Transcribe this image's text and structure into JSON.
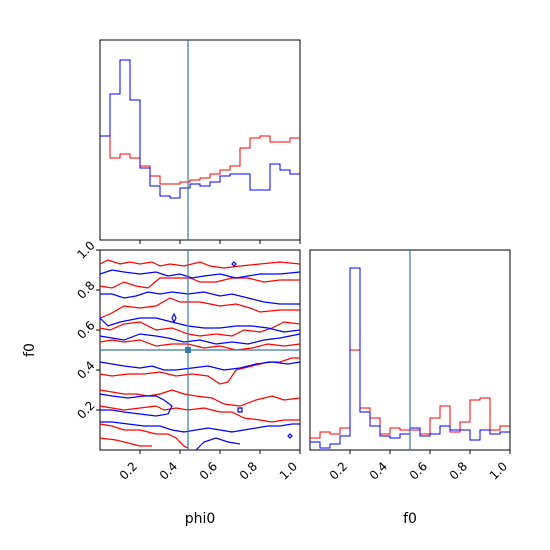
{
  "chart_data": {
    "type": "corner",
    "parameters": [
      "phi0",
      "f0"
    ],
    "truths": {
      "phi0": 0.44,
      "f0": 0.5
    },
    "truth_color": "#3a78a8",
    "series_colors": [
      "#ff0000",
      "#0000ff"
    ],
    "x_ticks": [
      "0.2",
      "0.4",
      "0.6",
      "0.8",
      "1.0"
    ],
    "y_ticks": [
      "0.2",
      "0.4",
      "0.6",
      "0.8",
      "1.0"
    ],
    "x_ticks_values": [
      0.2,
      0.4,
      0.6,
      0.8,
      1.0
    ],
    "y_ticks_values": [
      0.2,
      0.4,
      0.6,
      0.8,
      1.0
    ],
    "xlabels": {
      "phi0": "phi0",
      "f0": "f0"
    },
    "ylabel": "f0",
    "xlim": [
      0,
      1
    ],
    "ylim": [
      0,
      1
    ],
    "phi0_hist": {
      "bin_edges": [
        0,
        0.05,
        0.1,
        0.15,
        0.2,
        0.25,
        0.3,
        0.35,
        0.4,
        0.45,
        0.5,
        0.55,
        0.6,
        0.65,
        0.7,
        0.75,
        0.8,
        0.85,
        0.9,
        0.95,
        1.0
      ],
      "red": [
        0.52,
        0.41,
        0.43,
        0.41,
        0.37,
        0.32,
        0.28,
        0.28,
        0.29,
        0.3,
        0.31,
        0.33,
        0.35,
        0.37,
        0.46,
        0.51,
        0.52,
        0.49,
        0.49,
        0.51
      ],
      "blue": [
        0.52,
        0.73,
        0.9,
        0.7,
        0.36,
        0.27,
        0.22,
        0.21,
        0.26,
        0.28,
        0.27,
        0.29,
        0.32,
        0.33,
        0.33,
        0.25,
        0.25,
        0.38,
        0.35,
        0.33
      ]
    },
    "f0_hist": {
      "bin_edges": [
        0,
        0.05,
        0.1,
        0.15,
        0.2,
        0.25,
        0.3,
        0.35,
        0.4,
        0.45,
        0.5,
        0.55,
        0.6,
        0.65,
        0.7,
        0.75,
        0.8,
        0.85,
        0.9,
        0.95,
        1.0
      ],
      "red": [
        0.06,
        0.09,
        0.08,
        0.11,
        0.5,
        0.21,
        0.16,
        0.08,
        0.11,
        0.1,
        0.1,
        0.08,
        0.16,
        0.22,
        0.09,
        0.14,
        0.25,
        0.26,
        0.1,
        0.12
      ],
      "blue": [
        0.04,
        0.01,
        0.03,
        0.07,
        0.91,
        0.19,
        0.12,
        0.07,
        0.06,
        0.08,
        0.11,
        0.07,
        0.08,
        0.12,
        0.1,
        0.1,
        0.05,
        0.1,
        0.08,
        0.09
      ]
    },
    "contours_2d": {
      "red": [
        [
          [
            0.0,
            0.93
          ],
          [
            0.04,
            0.95
          ],
          [
            0.1,
            0.93
          ],
          [
            0.15,
            0.94
          ],
          [
            0.2,
            0.93
          ],
          [
            0.26,
            0.94
          ],
          [
            0.3,
            0.92
          ],
          [
            0.35,
            0.93
          ],
          [
            0.42,
            0.92
          ],
          [
            0.5,
            0.94
          ],
          [
            0.55,
            0.92
          ],
          [
            0.62,
            0.91
          ],
          [
            0.7,
            0.92
          ],
          [
            0.8,
            0.93
          ],
          [
            0.9,
            0.94
          ],
          [
            1.0,
            0.93
          ]
        ],
        [
          [
            0.0,
            0.82
          ],
          [
            0.06,
            0.81
          ],
          [
            0.12,
            0.84
          ],
          [
            0.18,
            0.82
          ],
          [
            0.24,
            0.81
          ],
          [
            0.3,
            0.86
          ],
          [
            0.38,
            0.86
          ],
          [
            0.45,
            0.86
          ],
          [
            0.5,
            0.84
          ],
          [
            0.58,
            0.84
          ],
          [
            0.66,
            0.86
          ],
          [
            0.74,
            0.86
          ],
          [
            0.82,
            0.84
          ],
          [
            0.9,
            0.85
          ],
          [
            1.0,
            0.85
          ]
        ],
        [
          [
            0.0,
            0.66
          ],
          [
            0.05,
            0.68
          ],
          [
            0.12,
            0.72
          ],
          [
            0.2,
            0.71
          ],
          [
            0.28,
            0.72
          ],
          [
            0.35,
            0.76
          ],
          [
            0.4,
            0.74
          ],
          [
            0.5,
            0.74
          ],
          [
            0.6,
            0.72
          ],
          [
            0.68,
            0.73
          ],
          [
            0.75,
            0.71
          ],
          [
            0.8,
            0.69
          ],
          [
            0.9,
            0.7
          ],
          [
            1.0,
            0.7
          ]
        ],
        [
          [
            0.0,
            0.61
          ],
          [
            0.05,
            0.6
          ],
          [
            0.12,
            0.63
          ],
          [
            0.2,
            0.64
          ],
          [
            0.28,
            0.6
          ],
          [
            0.36,
            0.61
          ],
          [
            0.44,
            0.58
          ],
          [
            0.5,
            0.57
          ],
          [
            0.58,
            0.58
          ],
          [
            0.66,
            0.57
          ],
          [
            0.72,
            0.6
          ],
          [
            0.8,
            0.59
          ],
          [
            0.86,
            0.61
          ],
          [
            0.92,
            0.64
          ],
          [
            1.0,
            0.63
          ]
        ],
        [
          [
            0.0,
            0.54
          ],
          [
            0.06,
            0.55
          ],
          [
            0.12,
            0.54
          ],
          [
            0.2,
            0.55
          ],
          [
            0.28,
            0.52
          ],
          [
            0.36,
            0.53
          ],
          [
            0.44,
            0.53
          ],
          [
            0.52,
            0.51
          ],
          [
            0.6,
            0.52
          ],
          [
            0.68,
            0.5
          ],
          [
            0.76,
            0.51
          ],
          [
            0.84,
            0.53
          ],
          [
            0.92,
            0.52
          ],
          [
            1.0,
            0.53
          ]
        ],
        [
          [
            0.0,
            0.38
          ],
          [
            0.06,
            0.37
          ],
          [
            0.14,
            0.38
          ],
          [
            0.22,
            0.38
          ],
          [
            0.3,
            0.39
          ],
          [
            0.38,
            0.37
          ],
          [
            0.46,
            0.38
          ],
          [
            0.54,
            0.37
          ],
          [
            0.6,
            0.33
          ],
          [
            0.64,
            0.34
          ],
          [
            0.68,
            0.4
          ],
          [
            0.76,
            0.42
          ],
          [
            0.84,
            0.44
          ],
          [
            0.9,
            0.44
          ],
          [
            0.96,
            0.46
          ],
          [
            1.0,
            0.46
          ]
        ],
        [
          [
            0.0,
            0.3
          ],
          [
            0.06,
            0.29
          ],
          [
            0.12,
            0.28
          ],
          [
            0.18,
            0.28
          ],
          [
            0.24,
            0.27
          ],
          [
            0.3,
            0.28
          ],
          [
            0.36,
            0.3
          ],
          [
            0.42,
            0.28
          ],
          [
            0.48,
            0.27
          ],
          [
            0.56,
            0.26
          ],
          [
            0.62,
            0.23
          ],
          [
            0.7,
            0.22
          ],
          [
            0.78,
            0.25
          ],
          [
            0.86,
            0.27
          ],
          [
            0.92,
            0.25
          ],
          [
            1.0,
            0.26
          ]
        ],
        [
          [
            0.0,
            0.22
          ],
          [
            0.06,
            0.21
          ],
          [
            0.12,
            0.2
          ],
          [
            0.2,
            0.21
          ],
          [
            0.28,
            0.22
          ],
          [
            0.32,
            0.2
          ],
          [
            0.38,
            0.21
          ],
          [
            0.44,
            0.2
          ],
          [
            0.52,
            0.21
          ],
          [
            0.6,
            0.19
          ],
          [
            0.66,
            0.19
          ],
          [
            0.72,
            0.16
          ],
          [
            0.8,
            0.15
          ],
          [
            0.86,
            0.14
          ],
          [
            0.92,
            0.15
          ],
          [
            1.0,
            0.15
          ]
        ],
        [
          [
            0.0,
            0.13
          ],
          [
            0.06,
            0.12
          ],
          [
            0.12,
            0.1
          ],
          [
            0.2,
            0.1
          ],
          [
            0.28,
            0.08
          ],
          [
            0.34,
            0.08
          ],
          [
            0.38,
            0.06
          ],
          [
            0.4,
            0.04
          ],
          [
            0.42,
            0.02
          ],
          [
            0.44,
            0.01
          ]
        ],
        [
          [
            0.0,
            0.06
          ],
          [
            0.08,
            0.05
          ],
          [
            0.16,
            0.03
          ],
          [
            0.2,
            0.02
          ],
          [
            0.26,
            0.02
          ]
        ]
      ],
      "blue": [
        [
          [
            0.0,
            0.88
          ],
          [
            0.06,
            0.9
          ],
          [
            0.12,
            0.89
          ],
          [
            0.2,
            0.88
          ],
          [
            0.28,
            0.89
          ],
          [
            0.34,
            0.87
          ],
          [
            0.4,
            0.88
          ],
          [
            0.46,
            0.86
          ],
          [
            0.52,
            0.87
          ],
          [
            0.6,
            0.88
          ],
          [
            0.68,
            0.86
          ],
          [
            0.74,
            0.87
          ],
          [
            0.8,
            0.88
          ],
          [
            0.9,
            0.88
          ],
          [
            1.0,
            0.89
          ]
        ],
        [
          [
            0.0,
            0.78
          ],
          [
            0.06,
            0.78
          ],
          [
            0.12,
            0.76
          ],
          [
            0.18,
            0.77
          ],
          [
            0.24,
            0.79
          ],
          [
            0.3,
            0.78
          ],
          [
            0.36,
            0.79
          ],
          [
            0.44,
            0.78
          ],
          [
            0.52,
            0.79
          ],
          [
            0.6,
            0.77
          ],
          [
            0.66,
            0.78
          ],
          [
            0.74,
            0.76
          ],
          [
            0.82,
            0.74
          ],
          [
            0.9,
            0.73
          ],
          [
            1.0,
            0.73
          ]
        ],
        [
          [
            0.0,
            0.66
          ],
          [
            0.04,
            0.62
          ],
          [
            0.1,
            0.64
          ],
          [
            0.2,
            0.66
          ],
          [
            0.28,
            0.66
          ],
          [
            0.36,
            0.64
          ],
          [
            0.44,
            0.62
          ],
          [
            0.52,
            0.61
          ],
          [
            0.6,
            0.61
          ],
          [
            0.68,
            0.62
          ],
          [
            0.76,
            0.62
          ],
          [
            0.84,
            0.61
          ],
          [
            0.92,
            0.59
          ],
          [
            1.0,
            0.6
          ]
        ],
        [
          [
            0.0,
            0.57
          ],
          [
            0.06,
            0.56
          ],
          [
            0.12,
            0.55
          ],
          [
            0.2,
            0.58
          ],
          [
            0.28,
            0.57
          ],
          [
            0.34,
            0.56
          ],
          [
            0.42,
            0.54
          ],
          [
            0.5,
            0.55
          ],
          [
            0.58,
            0.53
          ],
          [
            0.66,
            0.54
          ],
          [
            0.74,
            0.53
          ],
          [
            0.82,
            0.55
          ],
          [
            0.9,
            0.56
          ],
          [
            1.0,
            0.58
          ]
        ],
        [
          [
            0.0,
            0.44
          ],
          [
            0.06,
            0.43
          ],
          [
            0.12,
            0.42
          ],
          [
            0.2,
            0.41
          ],
          [
            0.26,
            0.42
          ],
          [
            0.32,
            0.4
          ],
          [
            0.38,
            0.4
          ],
          [
            0.46,
            0.41
          ],
          [
            0.54,
            0.42
          ],
          [
            0.62,
            0.4
          ],
          [
            0.7,
            0.41
          ],
          [
            0.78,
            0.43
          ],
          [
            0.86,
            0.44
          ],
          [
            0.94,
            0.43
          ],
          [
            1.0,
            0.44
          ]
        ],
        [
          [
            0.0,
            0.28
          ],
          [
            0.06,
            0.27
          ],
          [
            0.14,
            0.26
          ],
          [
            0.22,
            0.27
          ],
          [
            0.28,
            0.27
          ],
          [
            0.32,
            0.25
          ],
          [
            0.36,
            0.22
          ],
          [
            0.34,
            0.18
          ],
          [
            0.28,
            0.17
          ],
          [
            0.2,
            0.18
          ],
          [
            0.12,
            0.19
          ],
          [
            0.06,
            0.2
          ],
          [
            0.0,
            0.2
          ]
        ],
        [
          [
            0.0,
            0.14
          ],
          [
            0.06,
            0.14
          ],
          [
            0.14,
            0.13
          ],
          [
            0.22,
            0.12
          ],
          [
            0.3,
            0.12
          ],
          [
            0.36,
            0.1
          ],
          [
            0.42,
            0.09
          ],
          [
            0.48,
            0.1
          ],
          [
            0.54,
            0.11
          ],
          [
            0.6,
            0.1
          ],
          [
            0.66,
            0.09
          ],
          [
            0.72,
            0.1
          ],
          [
            0.78,
            0.11
          ],
          [
            0.84,
            0.12
          ],
          [
            0.9,
            0.12
          ],
          [
            0.96,
            0.13
          ],
          [
            1.0,
            0.13
          ]
        ],
        [
          [
            0.48,
            0.0
          ],
          [
            0.52,
            0.04
          ],
          [
            0.58,
            0.06
          ],
          [
            0.64,
            0.04
          ],
          [
            0.7,
            0.03
          ]
        ]
      ],
      "blue_islands": [
        [
          [
            0.37,
            0.68
          ],
          [
            0.38,
            0.66
          ],
          [
            0.37,
            0.64
          ],
          [
            0.36,
            0.66
          ]
        ],
        [
          [
            0.66,
            0.93
          ],
          [
            0.67,
            0.94
          ],
          [
            0.68,
            0.93
          ],
          [
            0.67,
            0.92
          ]
        ],
        [
          [
            0.69,
            0.21
          ],
          [
            0.71,
            0.21
          ],
          [
            0.71,
            0.19
          ],
          [
            0.69,
            0.19
          ]
        ],
        [
          [
            0.94,
            0.07
          ],
          [
            0.95,
            0.08
          ],
          [
            0.96,
            0.07
          ],
          [
            0.95,
            0.06
          ]
        ]
      ]
    }
  }
}
